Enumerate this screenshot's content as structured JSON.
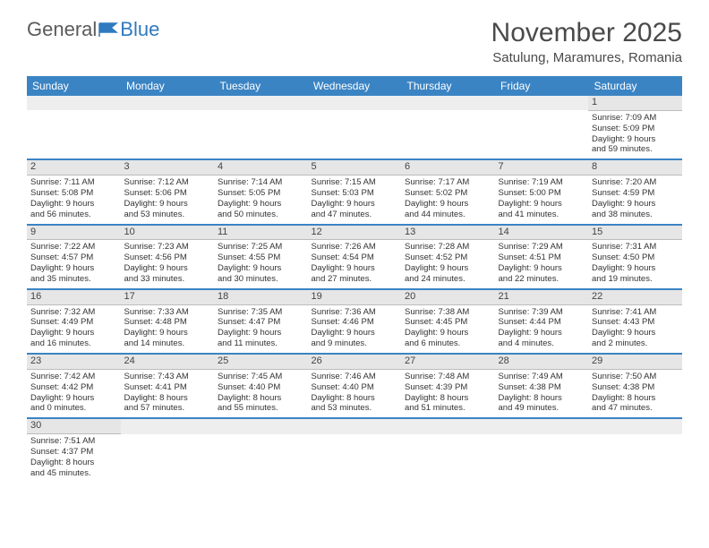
{
  "logo": {
    "text1": "General",
    "text2": "Blue"
  },
  "title": "November 2025",
  "location": "Satulung, Maramures, Romania",
  "colors": {
    "header_bg": "#3b84c4",
    "header_text": "#ffffff",
    "daynum_bg": "#e6e6e6",
    "border": "#3b84c4",
    "text": "#333333",
    "logo_gray": "#5a5a5a",
    "logo_blue": "#2f7abf"
  },
  "dayHeaders": [
    "Sunday",
    "Monday",
    "Tuesday",
    "Wednesday",
    "Thursday",
    "Friday",
    "Saturday"
  ],
  "weeks": [
    [
      null,
      null,
      null,
      null,
      null,
      null,
      {
        "n": "1",
        "sr": "Sunrise: 7:09 AM",
        "ss": "Sunset: 5:09 PM",
        "dl1": "Daylight: 9 hours",
        "dl2": "and 59 minutes."
      }
    ],
    [
      {
        "n": "2",
        "sr": "Sunrise: 7:11 AM",
        "ss": "Sunset: 5:08 PM",
        "dl1": "Daylight: 9 hours",
        "dl2": "and 56 minutes."
      },
      {
        "n": "3",
        "sr": "Sunrise: 7:12 AM",
        "ss": "Sunset: 5:06 PM",
        "dl1": "Daylight: 9 hours",
        "dl2": "and 53 minutes."
      },
      {
        "n": "4",
        "sr": "Sunrise: 7:14 AM",
        "ss": "Sunset: 5:05 PM",
        "dl1": "Daylight: 9 hours",
        "dl2": "and 50 minutes."
      },
      {
        "n": "5",
        "sr": "Sunrise: 7:15 AM",
        "ss": "Sunset: 5:03 PM",
        "dl1": "Daylight: 9 hours",
        "dl2": "and 47 minutes."
      },
      {
        "n": "6",
        "sr": "Sunrise: 7:17 AM",
        "ss": "Sunset: 5:02 PM",
        "dl1": "Daylight: 9 hours",
        "dl2": "and 44 minutes."
      },
      {
        "n": "7",
        "sr": "Sunrise: 7:19 AM",
        "ss": "Sunset: 5:00 PM",
        "dl1": "Daylight: 9 hours",
        "dl2": "and 41 minutes."
      },
      {
        "n": "8",
        "sr": "Sunrise: 7:20 AM",
        "ss": "Sunset: 4:59 PM",
        "dl1": "Daylight: 9 hours",
        "dl2": "and 38 minutes."
      }
    ],
    [
      {
        "n": "9",
        "sr": "Sunrise: 7:22 AM",
        "ss": "Sunset: 4:57 PM",
        "dl1": "Daylight: 9 hours",
        "dl2": "and 35 minutes."
      },
      {
        "n": "10",
        "sr": "Sunrise: 7:23 AM",
        "ss": "Sunset: 4:56 PM",
        "dl1": "Daylight: 9 hours",
        "dl2": "and 33 minutes."
      },
      {
        "n": "11",
        "sr": "Sunrise: 7:25 AM",
        "ss": "Sunset: 4:55 PM",
        "dl1": "Daylight: 9 hours",
        "dl2": "and 30 minutes."
      },
      {
        "n": "12",
        "sr": "Sunrise: 7:26 AM",
        "ss": "Sunset: 4:54 PM",
        "dl1": "Daylight: 9 hours",
        "dl2": "and 27 minutes."
      },
      {
        "n": "13",
        "sr": "Sunrise: 7:28 AM",
        "ss": "Sunset: 4:52 PM",
        "dl1": "Daylight: 9 hours",
        "dl2": "and 24 minutes."
      },
      {
        "n": "14",
        "sr": "Sunrise: 7:29 AM",
        "ss": "Sunset: 4:51 PM",
        "dl1": "Daylight: 9 hours",
        "dl2": "and 22 minutes."
      },
      {
        "n": "15",
        "sr": "Sunrise: 7:31 AM",
        "ss": "Sunset: 4:50 PM",
        "dl1": "Daylight: 9 hours",
        "dl2": "and 19 minutes."
      }
    ],
    [
      {
        "n": "16",
        "sr": "Sunrise: 7:32 AM",
        "ss": "Sunset: 4:49 PM",
        "dl1": "Daylight: 9 hours",
        "dl2": "and 16 minutes."
      },
      {
        "n": "17",
        "sr": "Sunrise: 7:33 AM",
        "ss": "Sunset: 4:48 PM",
        "dl1": "Daylight: 9 hours",
        "dl2": "and 14 minutes."
      },
      {
        "n": "18",
        "sr": "Sunrise: 7:35 AM",
        "ss": "Sunset: 4:47 PM",
        "dl1": "Daylight: 9 hours",
        "dl2": "and 11 minutes."
      },
      {
        "n": "19",
        "sr": "Sunrise: 7:36 AM",
        "ss": "Sunset: 4:46 PM",
        "dl1": "Daylight: 9 hours",
        "dl2": "and 9 minutes."
      },
      {
        "n": "20",
        "sr": "Sunrise: 7:38 AM",
        "ss": "Sunset: 4:45 PM",
        "dl1": "Daylight: 9 hours",
        "dl2": "and 6 minutes."
      },
      {
        "n": "21",
        "sr": "Sunrise: 7:39 AM",
        "ss": "Sunset: 4:44 PM",
        "dl1": "Daylight: 9 hours",
        "dl2": "and 4 minutes."
      },
      {
        "n": "22",
        "sr": "Sunrise: 7:41 AM",
        "ss": "Sunset: 4:43 PM",
        "dl1": "Daylight: 9 hours",
        "dl2": "and 2 minutes."
      }
    ],
    [
      {
        "n": "23",
        "sr": "Sunrise: 7:42 AM",
        "ss": "Sunset: 4:42 PM",
        "dl1": "Daylight: 9 hours",
        "dl2": "and 0 minutes."
      },
      {
        "n": "24",
        "sr": "Sunrise: 7:43 AM",
        "ss": "Sunset: 4:41 PM",
        "dl1": "Daylight: 8 hours",
        "dl2": "and 57 minutes."
      },
      {
        "n": "25",
        "sr": "Sunrise: 7:45 AM",
        "ss": "Sunset: 4:40 PM",
        "dl1": "Daylight: 8 hours",
        "dl2": "and 55 minutes."
      },
      {
        "n": "26",
        "sr": "Sunrise: 7:46 AM",
        "ss": "Sunset: 4:40 PM",
        "dl1": "Daylight: 8 hours",
        "dl2": "and 53 minutes."
      },
      {
        "n": "27",
        "sr": "Sunrise: 7:48 AM",
        "ss": "Sunset: 4:39 PM",
        "dl1": "Daylight: 8 hours",
        "dl2": "and 51 minutes."
      },
      {
        "n": "28",
        "sr": "Sunrise: 7:49 AM",
        "ss": "Sunset: 4:38 PM",
        "dl1": "Daylight: 8 hours",
        "dl2": "and 49 minutes."
      },
      {
        "n": "29",
        "sr": "Sunrise: 7:50 AM",
        "ss": "Sunset: 4:38 PM",
        "dl1": "Daylight: 8 hours",
        "dl2": "and 47 minutes."
      }
    ],
    [
      {
        "n": "30",
        "sr": "Sunrise: 7:51 AM",
        "ss": "Sunset: 4:37 PM",
        "dl1": "Daylight: 8 hours",
        "dl2": "and 45 minutes."
      },
      null,
      null,
      null,
      null,
      null,
      null
    ]
  ]
}
